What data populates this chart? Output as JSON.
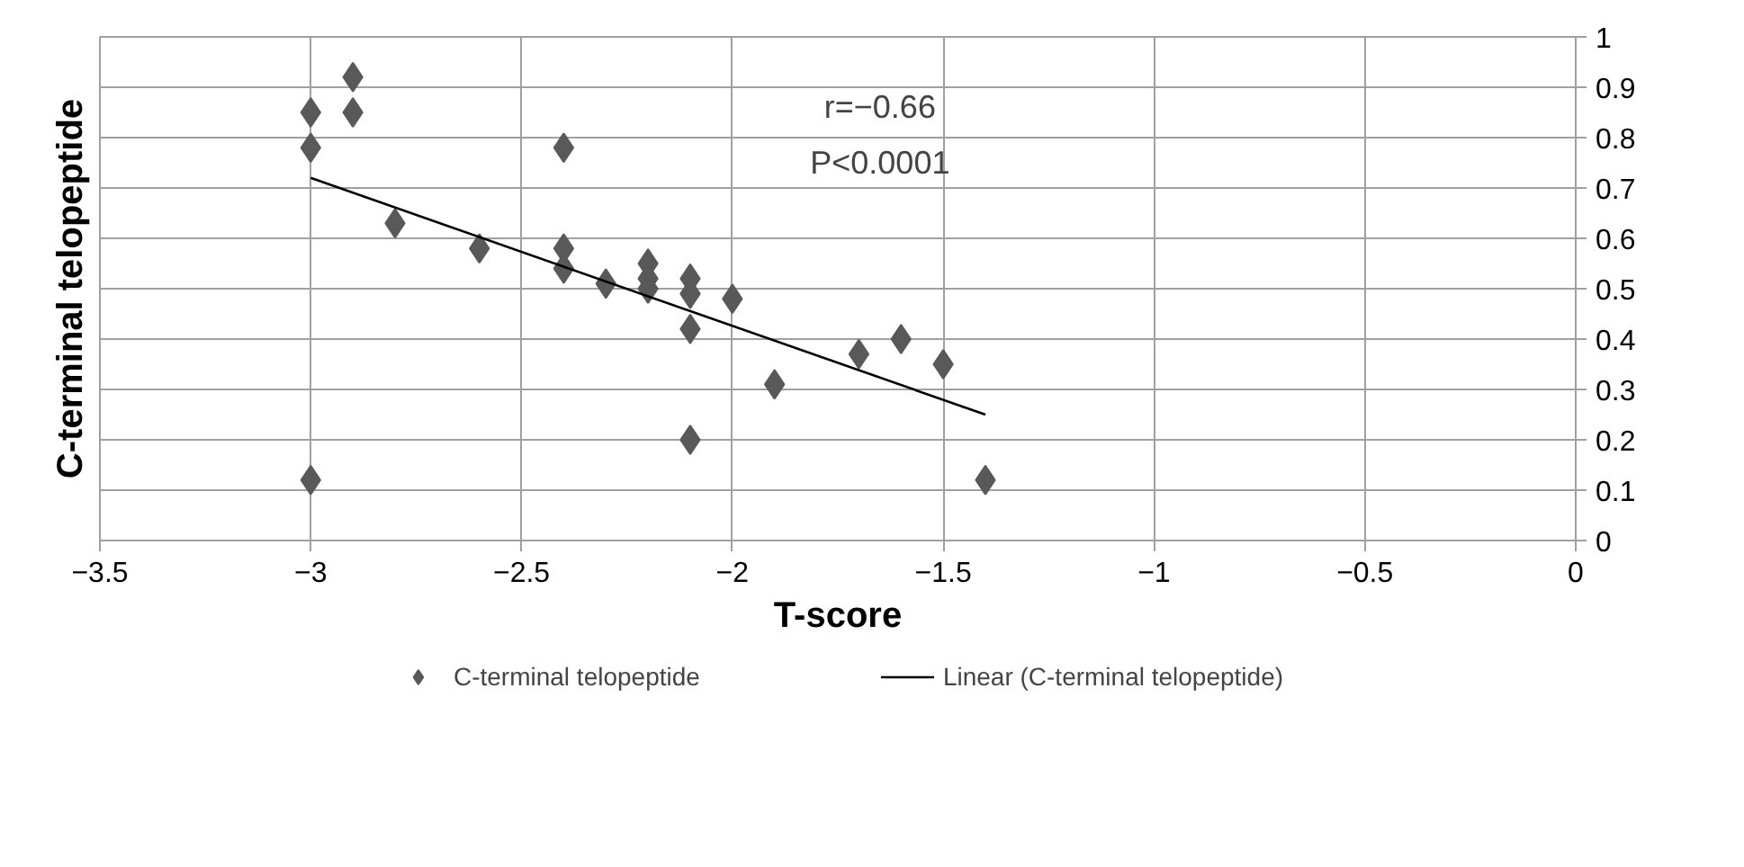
{
  "chart_data": {
    "type": "scatter",
    "xlabel": "T-score",
    "ylabel": "C-terminal telopeptide",
    "xlim": [
      -3.5,
      0
    ],
    "xticks": [
      {
        "value": -3.5,
        "label": "−3.5"
      },
      {
        "value": -3,
        "label": "−3"
      },
      {
        "value": -2.5,
        "label": "−2.5"
      },
      {
        "value": -2,
        "label": "−2"
      },
      {
        "value": -1.5,
        "label": "−1.5"
      },
      {
        "value": -1,
        "label": "−1"
      },
      {
        "value": -0.5,
        "label": "−0.5"
      },
      0
    ],
    "ylim": [
      0,
      1
    ],
    "yticks": [
      0,
      0.1,
      0.2,
      0.3,
      0.4,
      0.5,
      0.6,
      0.7,
      0.8,
      0.9,
      1
    ],
    "grid": true,
    "legend": "bottom",
    "annotations": [
      "r=−0.66",
      "P<0.0001"
    ],
    "series": [
      {
        "name": "C-terminal telopeptide",
        "color": "#595959",
        "marker": "diamond",
        "x": [
          -3,
          -3,
          -2.9,
          -2.9,
          -3,
          -2.8,
          -2.6,
          -2.4,
          -2.4,
          -2.4,
          -2.3,
          -2.2,
          -2.2,
          -2.2,
          -2.1,
          -2.1,
          -2.1,
          -2.1,
          -2.0,
          -1.9,
          -1.7,
          -1.6,
          -1.5,
          -1.4
        ],
        "values": [
          0.85,
          0.78,
          0.92,
          0.85,
          0.12,
          0.63,
          0.58,
          0.78,
          0.58,
          0.54,
          0.51,
          0.55,
          0.52,
          0.5,
          0.52,
          0.49,
          0.42,
          0.2,
          0.48,
          0.31,
          0.37,
          0.4,
          0.35,
          0.12
        ]
      },
      {
        "name": "Linear (C-terminal telopeptide)",
        "type": "line",
        "color": "#000000",
        "line_style": "solid",
        "x": [
          -3,
          -1.4
        ],
        "values": [
          0.72,
          0.25
        ]
      }
    ]
  }
}
